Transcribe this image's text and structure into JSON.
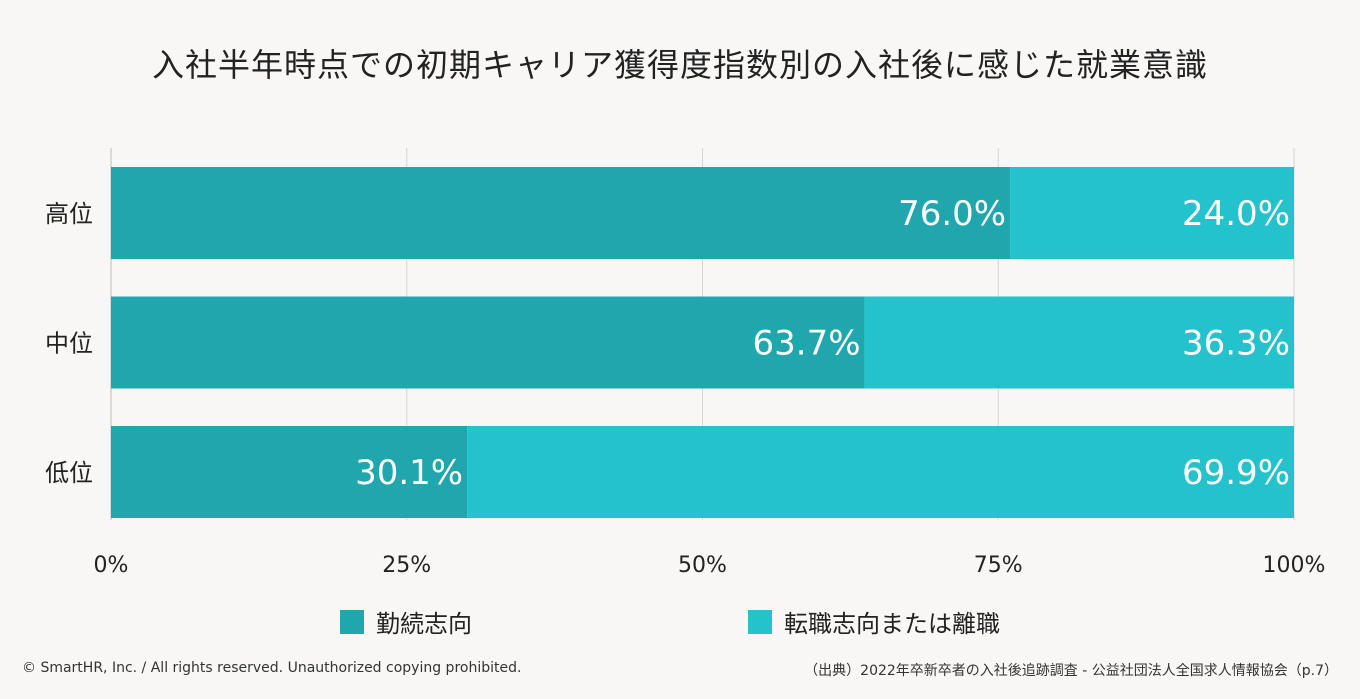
{
  "title": "入社半年時点での初期キャリア獲得度指数別の入社後に感じた就業意識",
  "colors": {
    "series1": "#20a7ae",
    "series2": "#24c2cd",
    "grid": "#d6d6d6",
    "axis": "#bbbbbb",
    "label_text": "#ffffff"
  },
  "chart_data": {
    "type": "bar",
    "orientation": "horizontal",
    "stacked": true,
    "title": "入社半年時点での初期キャリア獲得度指数別の入社後に感じた就業意識",
    "categories": [
      "高位",
      "中位",
      "低位"
    ],
    "series": [
      {
        "name": "勤続志向",
        "values": [
          76.0,
          63.7,
          30.1
        ],
        "labels": [
          "76.0%",
          "63.7%",
          "30.1%"
        ]
      },
      {
        "name": "転職志向または離職",
        "values": [
          24.0,
          36.3,
          69.9
        ],
        "labels": [
          "24.0%",
          "36.3%",
          "69.9%"
        ]
      }
    ],
    "xlim": [
      0,
      100
    ],
    "xticks": [
      0,
      25,
      50,
      75,
      100
    ],
    "xtick_labels": [
      "0%",
      "25%",
      "50%",
      "75%",
      "100%"
    ],
    "grid": true,
    "legend_position": "bottom"
  },
  "footer": {
    "copyright": "© SmartHR, Inc. / All rights reserved. Unauthorized copying prohibited.",
    "source": "（出典）2022年卒新卒者の入社後追跡調査 - 公益社団法人全国求人情報協会（p.7）"
  }
}
